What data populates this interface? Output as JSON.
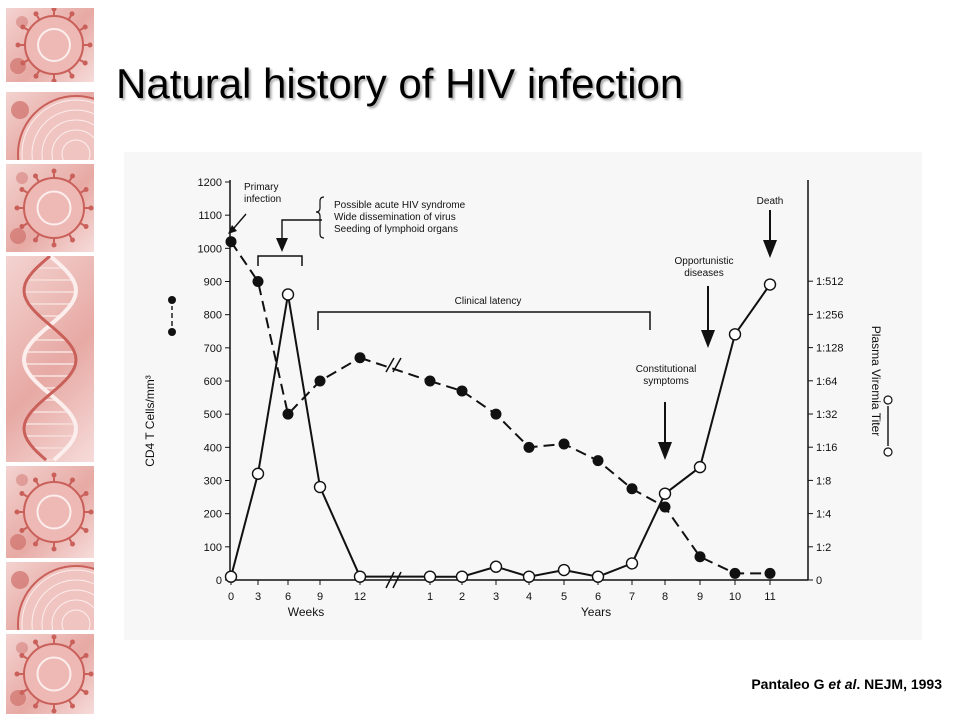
{
  "slide": {
    "title": "Natural history of HIV infection",
    "citation": {
      "authors": "Pantaleo G",
      "etal": "et al",
      "journal": ". NEJM, 1993"
    }
  },
  "decoration": {
    "tiles": [
      {
        "motif": "virus-icon"
      },
      {
        "motif": "virus-closeup-icon"
      },
      {
        "motif": "virus-icon"
      },
      {
        "motif": "dna-helix-icon"
      },
      {
        "motif": "virus-icon"
      },
      {
        "motif": "virus-closeup-icon"
      },
      {
        "motif": "virus-icon"
      }
    ],
    "tile_color": "#e7a9a4",
    "motif_color": "#c9605a"
  },
  "chart_data": {
    "type": "line",
    "title": "",
    "x_ticks": [
      "0",
      "3",
      "6",
      "9",
      "12",
      "1",
      "2",
      "3",
      "4",
      "5",
      "6",
      "7",
      "8",
      "9",
      "10",
      "11"
    ],
    "x_group_labels": [
      "Weeks",
      "Years"
    ],
    "x_break_after": "12",
    "ylabel_left": "CD4 T Cells/mm³",
    "ylabel_right": "Plasma Viremia Titer",
    "y_left_range": [
      0,
      1200
    ],
    "y_left_ticks": [
      0,
      100,
      200,
      300,
      400,
      500,
      600,
      700,
      800,
      900,
      1000,
      1100,
      1200
    ],
    "y_right_ticks": [
      "0",
      "1:2",
      "1:4",
      "1:8",
      "1:16",
      "1:32",
      "1:64",
      "1:128",
      "1:256",
      "1:512"
    ],
    "grid": false,
    "series": [
      {
        "legend_symbol": "filled-circle-dashed",
        "line_style": "dashed",
        "marker": "filled",
        "axis": "left",
        "values": [
          1020,
          900,
          500,
          600,
          670,
          600,
          570,
          500,
          400,
          410,
          360,
          275,
          220,
          70,
          20,
          20
        ]
      },
      {
        "legend_symbol": "open-circle-solid",
        "line_style": "solid",
        "marker": "open",
        "axis": "right",
        "values": [
          0.1,
          3.2,
          8.6,
          2.8,
          0.1,
          0.1,
          0.1,
          0.4,
          0.1,
          0.3,
          0.1,
          0.5,
          2.6,
          3.4,
          7.4,
          8.9
        ]
      }
    ],
    "annotations": {
      "primary_infection": [
        "Primary",
        "infection"
      ],
      "acute_phase": [
        "Possible acute HIV syndrome",
        "Wide dissemination of virus",
        "Seeding of lymphoid organs"
      ],
      "clinical_latency": "Clinical latency",
      "constitutional": [
        "Constitutional",
        "symptoms"
      ],
      "opportunistic": [
        "Opportunistic",
        "diseases"
      ],
      "death": "Death"
    }
  }
}
